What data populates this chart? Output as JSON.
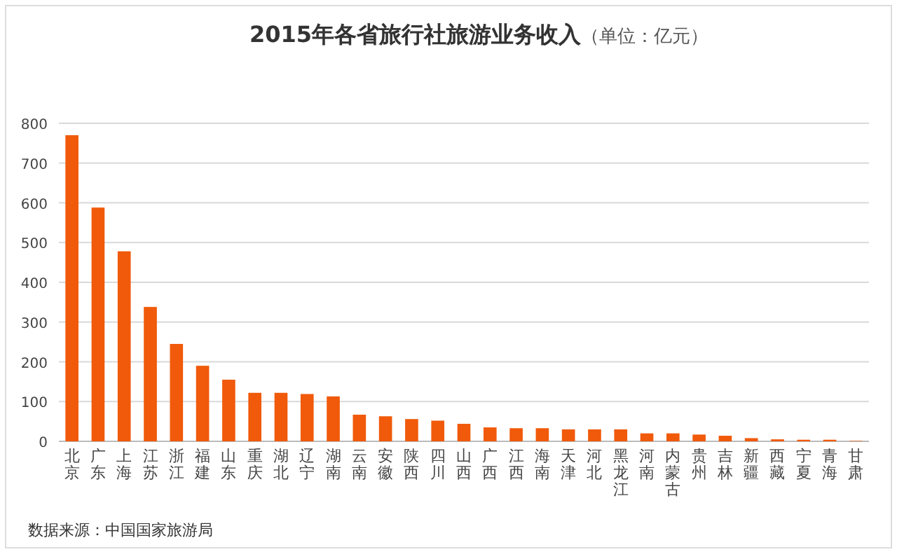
{
  "chart_data": {
    "type": "bar",
    "title": "2015年各省旅行社旅游业务收入",
    "subtitle": "（单位：亿元）",
    "categories": [
      "北京",
      "广东",
      "上海",
      "江苏",
      "浙江",
      "福建",
      "山东",
      "重庆",
      "湖北",
      "辽宁",
      "湖南",
      "云南",
      "安徽",
      "陕西",
      "四川",
      "山西",
      "广西",
      "江西",
      "海南",
      "天津",
      "河北",
      "黑龙江",
      "河南",
      "内蒙古",
      "贵州",
      "吉林",
      "新疆",
      "西藏",
      "宁夏",
      "青海",
      "甘肃"
    ],
    "values": [
      770,
      588,
      478,
      338,
      245,
      190,
      155,
      122,
      122,
      119,
      113,
      67,
      63,
      56,
      52,
      44,
      35,
      33,
      33,
      30,
      30,
      30,
      20,
      20,
      17,
      14,
      8,
      5,
      4,
      4,
      1
    ],
    "color": "#f05a0a",
    "ylim": [
      0,
      800
    ],
    "yticks": [
      0,
      100,
      200,
      300,
      400,
      500,
      600,
      700,
      800
    ],
    "grid": "y",
    "annotations": [
      "数据来源：中国国家旅游局"
    ]
  }
}
